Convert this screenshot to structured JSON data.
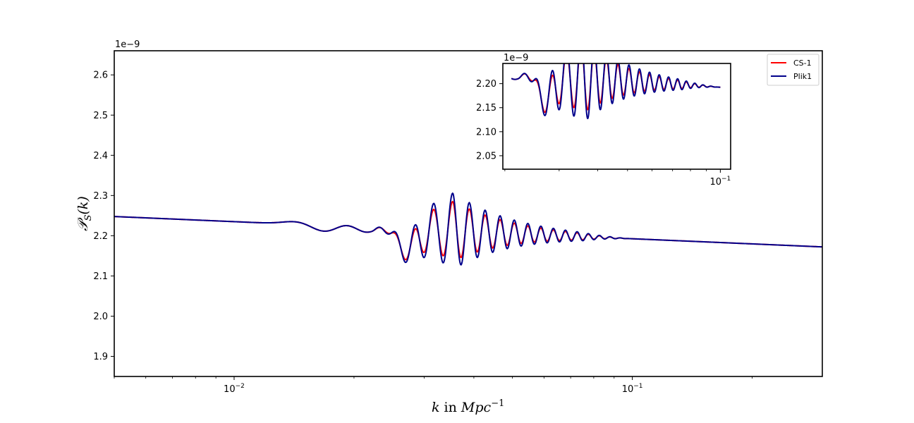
{
  "colors": {
    "cs1": "#ff0000",
    "plik1": "#00008b"
  },
  "chart_data": [
    {
      "type": "line",
      "role": "main",
      "title": "",
      "xlabel": "k in Mpc^{-1}",
      "xlabel_parts": {
        "k": "k",
        "in": " in ",
        "mpc": "Mpc",
        "exp": "−1"
      },
      "ylabel": "P_S(k)",
      "ylabel_parts": {
        "p": "𝒫",
        "sub": "S",
        "args": "(k)"
      },
      "y_offset_label": "1e−9",
      "xscale": "log",
      "xlim": [
        0.005,
        0.3
      ],
      "ylim": [
        1.85,
        2.66
      ],
      "x_major_ticks": [
        {
          "value": 0.01,
          "label": "10",
          "exp": "−2"
        },
        {
          "value": 0.1,
          "label": "10",
          "exp": "−1"
        }
      ],
      "yticks": [
        1.9,
        2.0,
        2.1,
        2.2,
        2.3,
        2.4,
        2.5,
        2.6
      ],
      "ytick_labels": [
        "1.9",
        "2.0",
        "2.1",
        "2.2",
        "2.3",
        "2.4",
        "2.5",
        "2.6"
      ],
      "legend": "top-right",
      "grid": false,
      "series": [
        {
          "name": "CS-1",
          "color": "#ff0000",
          "amp_scale": 0.78
        },
        {
          "name": "Plik1",
          "color": "#00008b",
          "amp_scale": 1.0
        }
      ],
      "model": {
        "baseline": {
          "amplitude": 2.235,
          "pivot": 0.01,
          "slope": -0.0425
        },
        "features": [
          {
            "x": 0.0145,
            "w": 0.05,
            "a": 0.008
          },
          {
            "x": 0.017,
            "w": 0.05,
            "a": -0.018
          },
          {
            "x": 0.0193,
            "w": 0.045,
            "a": 0.014
          },
          {
            "x": 0.0215,
            "w": 0.045,
            "a": -0.02
          },
          {
            "x": 0.0245,
            "w": 0.045,
            "a": 0.018
          },
          {
            "x": 0.0268,
            "w": 0.038,
            "a": -0.06
          }
        ],
        "oscillation": {
          "center": 0.0355,
          "kmin": 0.022,
          "kmax": 0.098,
          "period_log10": 0.0475,
          "phase_x": 0.0284,
          "amp": 0.095,
          "width_log10": 0.2
        }
      }
    },
    {
      "type": "line",
      "role": "inset",
      "y_offset_label": "1e−9",
      "xscale": "log",
      "xlim": [
        0.0197,
        0.108
      ],
      "ylim": [
        2.022,
        2.242
      ],
      "yticks": [
        2.05,
        2.1,
        2.15,
        2.2
      ],
      "ytick_labels": [
        "2.05",
        "2.10",
        "2.15",
        "2.20"
      ],
      "x_major_ticks": [
        {
          "value": 0.1,
          "label": "10",
          "exp": "−1"
        }
      ],
      "series_range": [
        0.021,
        0.1
      ]
    }
  ],
  "legend_items": [
    "CS-1",
    "Plik1"
  ]
}
